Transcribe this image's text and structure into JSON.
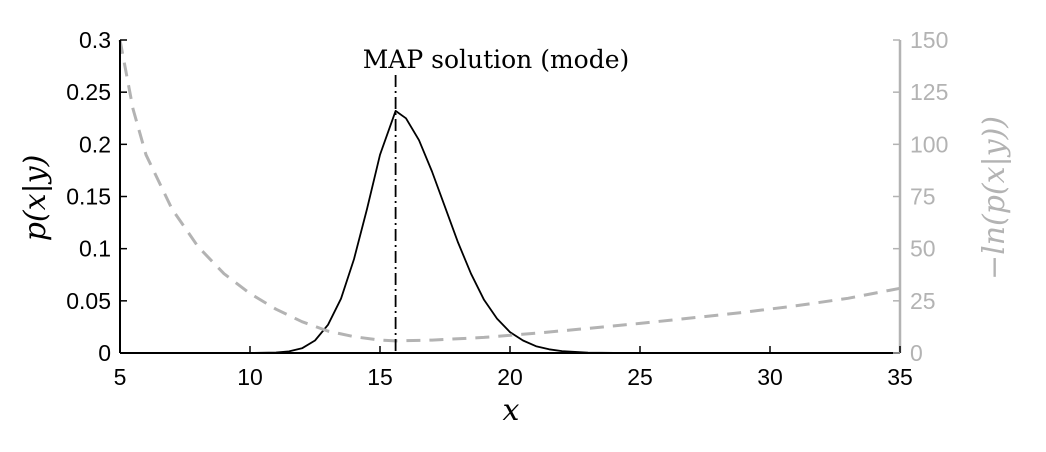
{
  "chart_data": {
    "type": "line",
    "title": "",
    "xlabel": "x",
    "ylabel_left": "p(x|y)",
    "ylabel_right": "−ln(p(x|y))",
    "xlim": [
      5,
      35
    ],
    "ylim_left": [
      0,
      0.3
    ],
    "ylim_right": [
      0,
      150
    ],
    "x_ticks": [
      "5",
      "10",
      "15",
      "20",
      "25",
      "30",
      "35"
    ],
    "y_ticks_left": [
      "0",
      "0.05",
      "0.1",
      "0.15",
      "0.2",
      "0.25",
      "0.3"
    ],
    "y_ticks_right": [
      "0",
      "25",
      "50",
      "75",
      "100",
      "125",
      "150"
    ],
    "grid": false,
    "annotation": {
      "text": "MAP solution (mode)",
      "x": 15.6
    },
    "colors": {
      "posterior": "#000000",
      "neg_log": "#b3b3b3",
      "axis_left": "#000000",
      "axis_right": "#b3b3b3"
    },
    "series": [
      {
        "axis": "left",
        "style": "solid",
        "x": [
          5,
          10,
          11,
          11.5,
          12,
          12.5,
          13,
          13.5,
          14,
          14.5,
          15,
          15.6,
          16,
          16.5,
          17,
          17.5,
          18,
          18.5,
          19,
          19.5,
          20,
          20.5,
          21,
          21.5,
          22,
          23,
          24,
          25,
          35
        ],
        "y": [
          0,
          0,
          0.0005,
          0.0015,
          0.0045,
          0.012,
          0.027,
          0.052,
          0.09,
          0.138,
          0.19,
          0.232,
          0.225,
          0.204,
          0.174,
          0.14,
          0.106,
          0.076,
          0.051,
          0.033,
          0.02,
          0.012,
          0.0065,
          0.0035,
          0.0018,
          0.0004,
          0.0001,
          0,
          0
        ]
      },
      {
        "axis": "right",
        "style": "dashed",
        "x": [
          5,
          5.5,
          6,
          7,
          8,
          9,
          10,
          11,
          12,
          13,
          14,
          15,
          15.6,
          17,
          19,
          21,
          23,
          25,
          27,
          29,
          31,
          33,
          35
        ],
        "y": [
          150,
          117,
          95,
          69,
          51,
          38,
          28.5,
          21,
          15,
          10.5,
          7.8,
          6.2,
          5.8,
          6.2,
          7.5,
          9.5,
          11.8,
          14.2,
          16.8,
          19.5,
          22.6,
          26.2,
          31
        ]
      }
    ]
  }
}
